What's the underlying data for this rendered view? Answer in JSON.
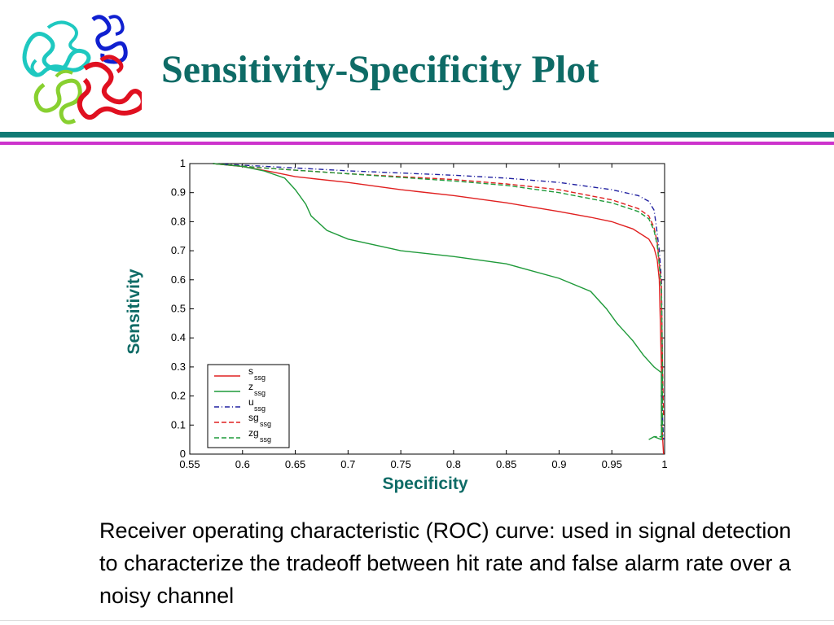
{
  "slide": {
    "title": "Sensitivity-Specificity Plot",
    "caption": "Receiver operating characteristic (ROC) curve: used in signal detection to characterize the tradeoff between hit rate and false alarm rate over a noisy channel",
    "logo": "protein-structure-ribbon-logo"
  },
  "theme": {
    "title_color": "#0e6b66",
    "rule_teal": "#117a74",
    "rule_magenta": "#cc33cc",
    "axis_label_color": "#0e6b66"
  },
  "chart_data": {
    "type": "line",
    "xlabel": "Specificity",
    "ylabel": "Sensitivity",
    "xlim": [
      0.55,
      1.0
    ],
    "ylim": [
      0,
      1.0
    ],
    "xticks": [
      "0.55",
      "0.6",
      "0.65",
      "0.7",
      "0.75",
      "0.8",
      "0.85",
      "0.9",
      "0.95",
      "1"
    ],
    "yticks": [
      "0",
      "0.1",
      "0.2",
      "0.3",
      "0.4",
      "0.5",
      "0.6",
      "0.7",
      "0.8",
      "0.9",
      "1"
    ],
    "grid": false,
    "legend": "bottom-left",
    "series": [
      {
        "name": "s",
        "sub": "ssg",
        "color": "#e02020",
        "dash": "solid",
        "points": [
          [
            0.572,
            1.0
          ],
          [
            0.6,
            0.99
          ],
          [
            0.63,
            0.97
          ],
          [
            0.65,
            0.955
          ],
          [
            0.7,
            0.935
          ],
          [
            0.75,
            0.91
          ],
          [
            0.8,
            0.89
          ],
          [
            0.85,
            0.865
          ],
          [
            0.9,
            0.835
          ],
          [
            0.93,
            0.815
          ],
          [
            0.95,
            0.8
          ],
          [
            0.97,
            0.775
          ],
          [
            0.985,
            0.74
          ],
          [
            0.99,
            0.71
          ],
          [
            0.993,
            0.67
          ],
          [
            0.995,
            0.6
          ],
          [
            0.997,
            0.3
          ],
          [
            0.997,
            0.13
          ],
          [
            0.999,
            0.0
          ]
        ]
      },
      {
        "name": "z",
        "sub": "ssg",
        "color": "#1f9a3a",
        "dash": "solid",
        "points": [
          [
            0.572,
            1.0
          ],
          [
            0.6,
            0.99
          ],
          [
            0.62,
            0.975
          ],
          [
            0.64,
            0.95
          ],
          [
            0.65,
            0.91
          ],
          [
            0.66,
            0.86
          ],
          [
            0.665,
            0.82
          ],
          [
            0.68,
            0.77
          ],
          [
            0.7,
            0.74
          ],
          [
            0.75,
            0.7
          ],
          [
            0.8,
            0.68
          ],
          [
            0.85,
            0.655
          ],
          [
            0.9,
            0.605
          ],
          [
            0.93,
            0.56
          ],
          [
            0.945,
            0.5
          ],
          [
            0.955,
            0.45
          ],
          [
            0.97,
            0.39
          ],
          [
            0.98,
            0.34
          ],
          [
            0.99,
            0.3
          ],
          [
            0.997,
            0.28
          ],
          [
            0.997,
            0.05
          ],
          [
            0.99,
            0.06
          ],
          [
            0.985,
            0.05
          ]
        ]
      },
      {
        "name": "u",
        "sub": "ssg",
        "color": "#2020a0",
        "dash": "dashdot",
        "points": [
          [
            0.572,
            1.0
          ],
          [
            0.65,
            0.985
          ],
          [
            0.7,
            0.975
          ],
          [
            0.8,
            0.96
          ],
          [
            0.85,
            0.95
          ],
          [
            0.9,
            0.935
          ],
          [
            0.95,
            0.91
          ],
          [
            0.975,
            0.89
          ],
          [
            0.985,
            0.87
          ],
          [
            0.99,
            0.84
          ],
          [
            0.992,
            0.79
          ],
          [
            0.995,
            0.7
          ],
          [
            0.997,
            0.6
          ],
          [
            0.998,
            0.3
          ],
          [
            0.998,
            0.13
          ],
          [
            0.999,
            0.05
          ]
        ]
      },
      {
        "name": "sg",
        "sub": "ssg",
        "color": "#e02020",
        "dash": "dashed",
        "points": [
          [
            0.572,
            1.0
          ],
          [
            0.62,
            0.985
          ],
          [
            0.7,
            0.965
          ],
          [
            0.8,
            0.945
          ],
          [
            0.85,
            0.93
          ],
          [
            0.9,
            0.91
          ],
          [
            0.95,
            0.875
          ],
          [
            0.975,
            0.845
          ],
          [
            0.985,
            0.82
          ],
          [
            0.99,
            0.78
          ],
          [
            0.993,
            0.73
          ],
          [
            0.995,
            0.66
          ],
          [
            0.997,
            0.58
          ],
          [
            0.998,
            0.3
          ],
          [
            0.999,
            0.13
          ]
        ]
      },
      {
        "name": "zg",
        "sub": "ssg",
        "color": "#1f9a3a",
        "dash": "dashed",
        "points": [
          [
            0.572,
            1.0
          ],
          [
            0.62,
            0.985
          ],
          [
            0.7,
            0.965
          ],
          [
            0.8,
            0.94
          ],
          [
            0.85,
            0.925
          ],
          [
            0.9,
            0.9
          ],
          [
            0.95,
            0.865
          ],
          [
            0.975,
            0.835
          ],
          [
            0.985,
            0.81
          ],
          [
            0.99,
            0.77
          ],
          [
            0.993,
            0.72
          ],
          [
            0.995,
            0.65
          ],
          [
            0.997,
            0.56
          ],
          [
            0.998,
            0.3
          ],
          [
            0.998,
            0.06
          ],
          [
            0.99,
            0.06
          ]
        ]
      }
    ]
  }
}
